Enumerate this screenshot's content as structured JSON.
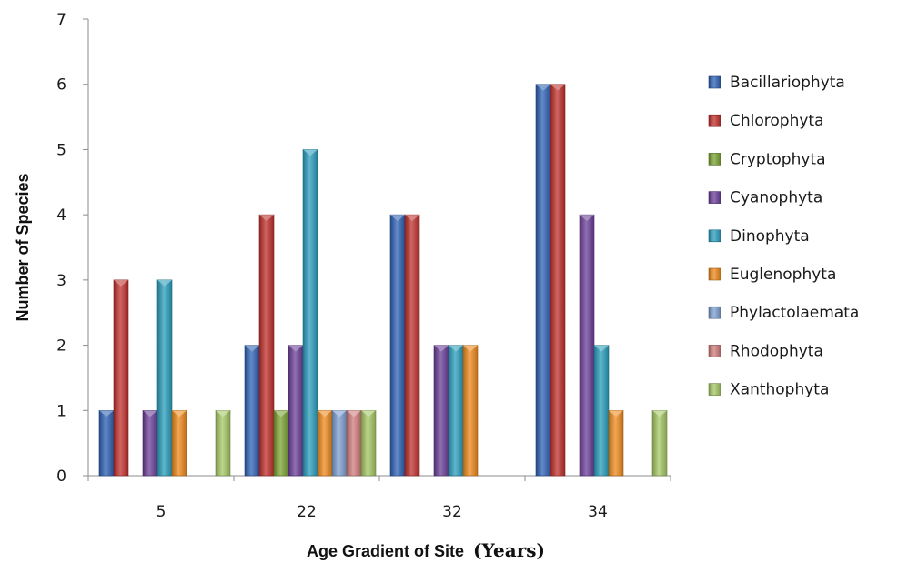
{
  "chart_data": {
    "type": "bar",
    "title": "",
    "xlabel_main": "Age Gradient of Site",
    "xlabel_unit": "(Years)",
    "ylabel": "Number of Species",
    "ylim": [
      0,
      7
    ],
    "yticks": [
      "0",
      "1",
      "2",
      "3",
      "4",
      "5",
      "6",
      "7"
    ],
    "categories": [
      "5",
      "22",
      "32",
      "34"
    ],
    "legend_position": "right",
    "grid": false,
    "series": [
      {
        "name": "Bacillariophyta",
        "color": "#2e62b5",
        "values": [
          1,
          2,
          4,
          6
        ]
      },
      {
        "name": "Chlorophyta",
        "color": "#c0302c",
        "values": [
          3,
          4,
          4,
          6
        ]
      },
      {
        "name": "Cryptophyta",
        "color": "#7ba332",
        "values": [
          0,
          1,
          0,
          0
        ]
      },
      {
        "name": "Cyanophyta",
        "color": "#6a3e98",
        "values": [
          1,
          2,
          2,
          4
        ]
      },
      {
        "name": "Dinophyta",
        "color": "#2a9fbe",
        "values": [
          3,
          5,
          2,
          2
        ]
      },
      {
        "name": "Euglenophyta",
        "color": "#ef8a1c",
        "values": [
          1,
          1,
          2,
          1
        ]
      },
      {
        "name": "Phylactolaemata",
        "color": "#7d9fd0",
        "values": [
          0,
          1,
          0,
          0
        ]
      },
      {
        "name": "Rhodophyta",
        "color": "#d27c7c",
        "values": [
          0,
          1,
          0,
          0
        ]
      },
      {
        "name": "Xanthophyta",
        "color": "#a5c866",
        "values": [
          1,
          1,
          0,
          1
        ]
      }
    ]
  }
}
